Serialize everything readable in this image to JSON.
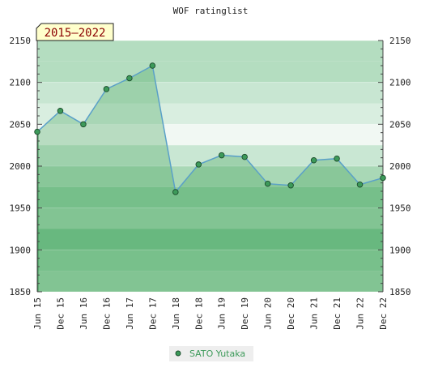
{
  "chart_data": {
    "type": "area",
    "title": "WOF ratinglist",
    "period_label": "2015–2022",
    "categories": [
      "Jun 15",
      "Dec 15",
      "Jun 16",
      "Dec 16",
      "Jun 17",
      "Dec 17",
      "Jun 18",
      "Dec 18",
      "Jun 19",
      "Dec 19",
      "Jun 20",
      "Dec 20",
      "Jun 21",
      "Dec 21",
      "Jun 22",
      "Dec 22"
    ],
    "series": [
      {
        "name": "SATO Yutaka",
        "values": [
          2041,
          2066,
          2050,
          2092,
          2105,
          2120,
          1969,
          2002,
          2013,
          2011,
          1979,
          1977,
          2007,
          2009,
          1978,
          1986
        ]
      }
    ],
    "ylim": [
      1850,
      2150
    ],
    "y_ticks": [
      1850,
      1900,
      1950,
      2000,
      2050,
      2100,
      2150
    ],
    "y_axis_both_sides": true,
    "grid": true,
    "legend_position": "bottom-center",
    "colors": {
      "line": "#5aa0c8",
      "marker": "#3d9a5a",
      "marker_edge": "#1a4a2a",
      "area": "#4caa64",
      "legend_text": "#3d9a5a",
      "period_box": "#ffffcc",
      "period_text": "#8b0000",
      "bands": [
        "#9bcfa8",
        "#8ccb9c",
        "#78c290",
        "#9fd2ab",
        "#8ccb9c",
        "#d8eddf",
        "#f2f9f4",
        "#c8e6d1",
        "#b5dec1"
      ]
    }
  }
}
